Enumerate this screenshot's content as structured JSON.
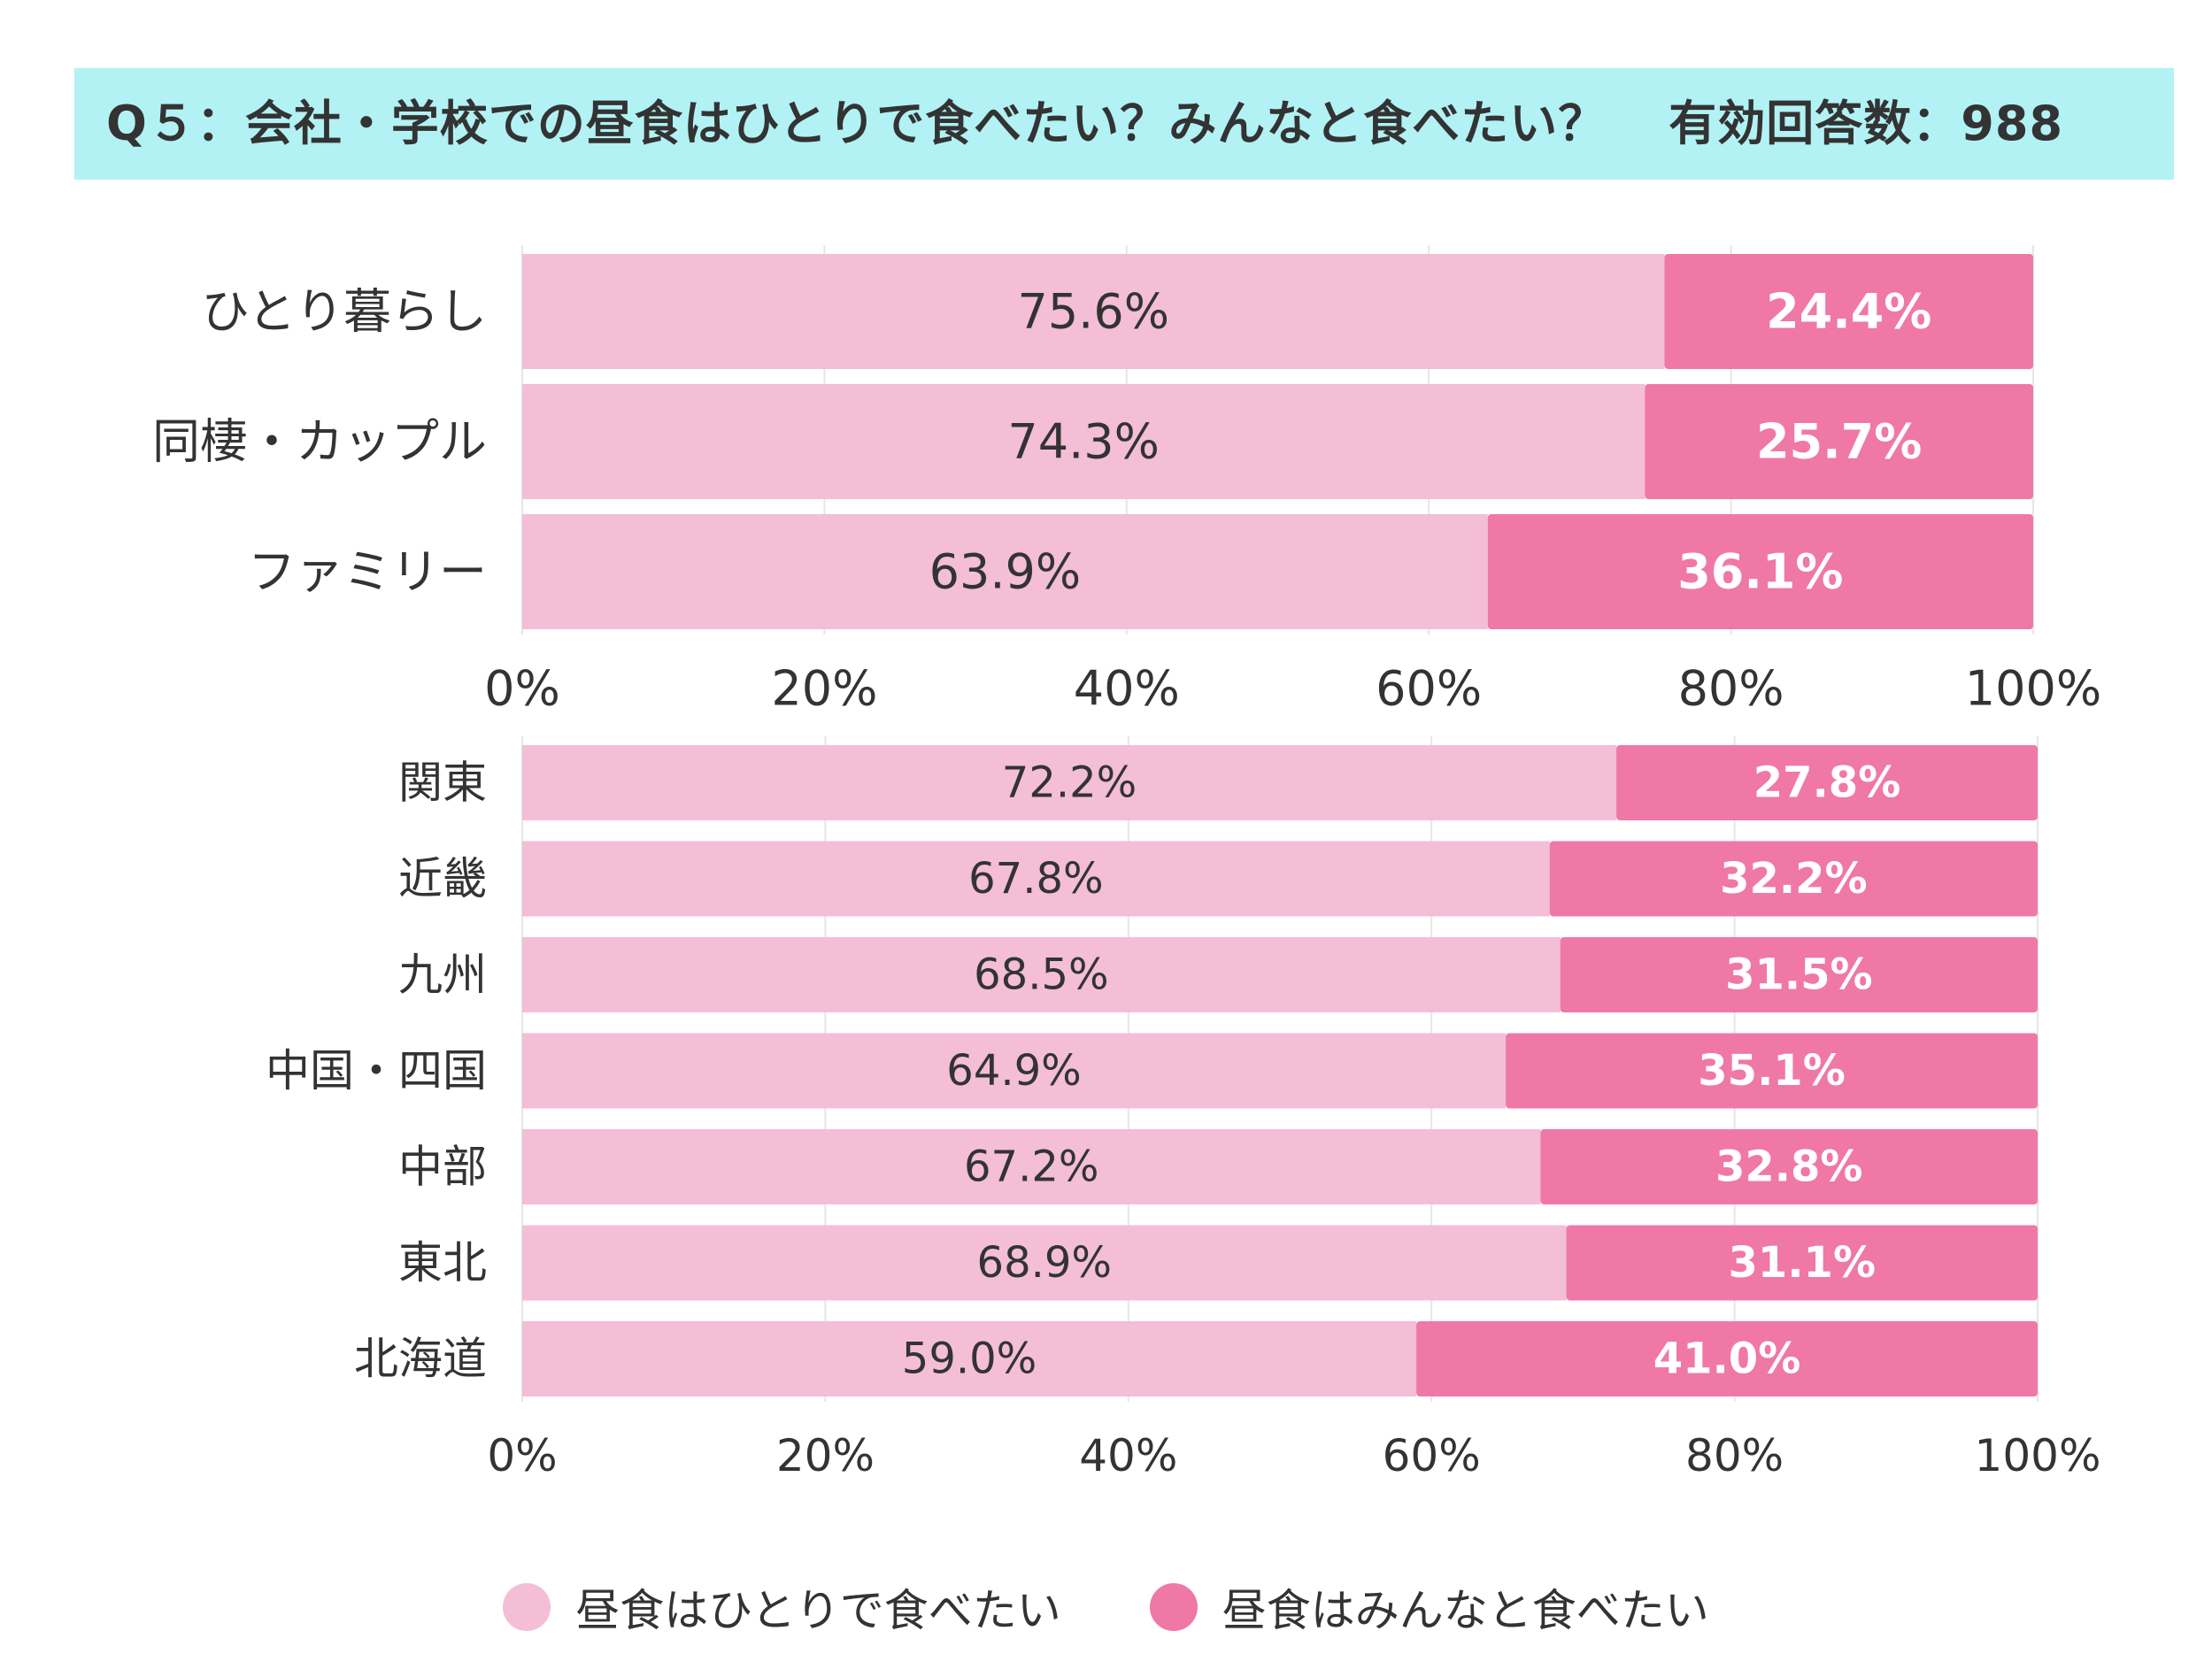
{
  "title": {
    "question": "Q５：会社・学校での昼食はひとりで食べたい？みんなと食べたい？",
    "respondents": "有効回答数：988"
  },
  "colors": {
    "alone": "#f3bed6",
    "together": "#ef78a6",
    "title_band": "#b2f2f4",
    "grid": "#e6e6e6"
  },
  "chart_data": [
    {
      "type": "bar",
      "orientation": "horizontal",
      "stacked": true,
      "categories": [
        "ひとり暮らし",
        "同棲・カップル",
        "ファミリー"
      ],
      "series": [
        {
          "name": "昼食はひとりで食べたい",
          "values": [
            75.6,
            74.3,
            63.9
          ],
          "labels": [
            "75.6%",
            "74.3%",
            "63.9%"
          ]
        },
        {
          "name": "昼食はみんなと食べたい",
          "values": [
            24.4,
            25.7,
            36.1
          ],
          "labels": [
            "24.4%",
            "25.7%",
            "36.1%"
          ]
        }
      ],
      "xlim": [
        0,
        100
      ],
      "xticks": [
        "0%",
        "20%",
        "40%",
        "60%",
        "80%",
        "100%"
      ]
    },
    {
      "type": "bar",
      "orientation": "horizontal",
      "stacked": true,
      "categories": [
        "関東",
        "近畿",
        "九州",
        "中国・四国",
        "中部",
        "東北",
        "北海道"
      ],
      "series": [
        {
          "name": "昼食はひとりで食べたい",
          "values": [
            72.2,
            67.8,
            68.5,
            64.9,
            67.2,
            68.9,
            59.0
          ],
          "labels": [
            "72.2%",
            "67.8%",
            "68.5%",
            "64.9%",
            "67.2%",
            "68.9%",
            "59.0%"
          ]
        },
        {
          "name": "昼食はみんなと食べたい",
          "values": [
            27.8,
            32.2,
            31.5,
            35.1,
            32.8,
            31.1,
            41.0
          ],
          "labels": [
            "27.8%",
            "32.2%",
            "31.5%",
            "35.1%",
            "32.8%",
            "31.1%",
            "41.0%"
          ]
        }
      ],
      "xlim": [
        0,
        100
      ],
      "xticks": [
        "0%",
        "20%",
        "40%",
        "60%",
        "80%",
        "100%"
      ]
    }
  ],
  "legend": [
    {
      "label": "昼食はひとりで食べたい",
      "color": "#f3bed6"
    },
    {
      "label": "昼食はみんなと食べたい",
      "color": "#ef78a6"
    }
  ]
}
